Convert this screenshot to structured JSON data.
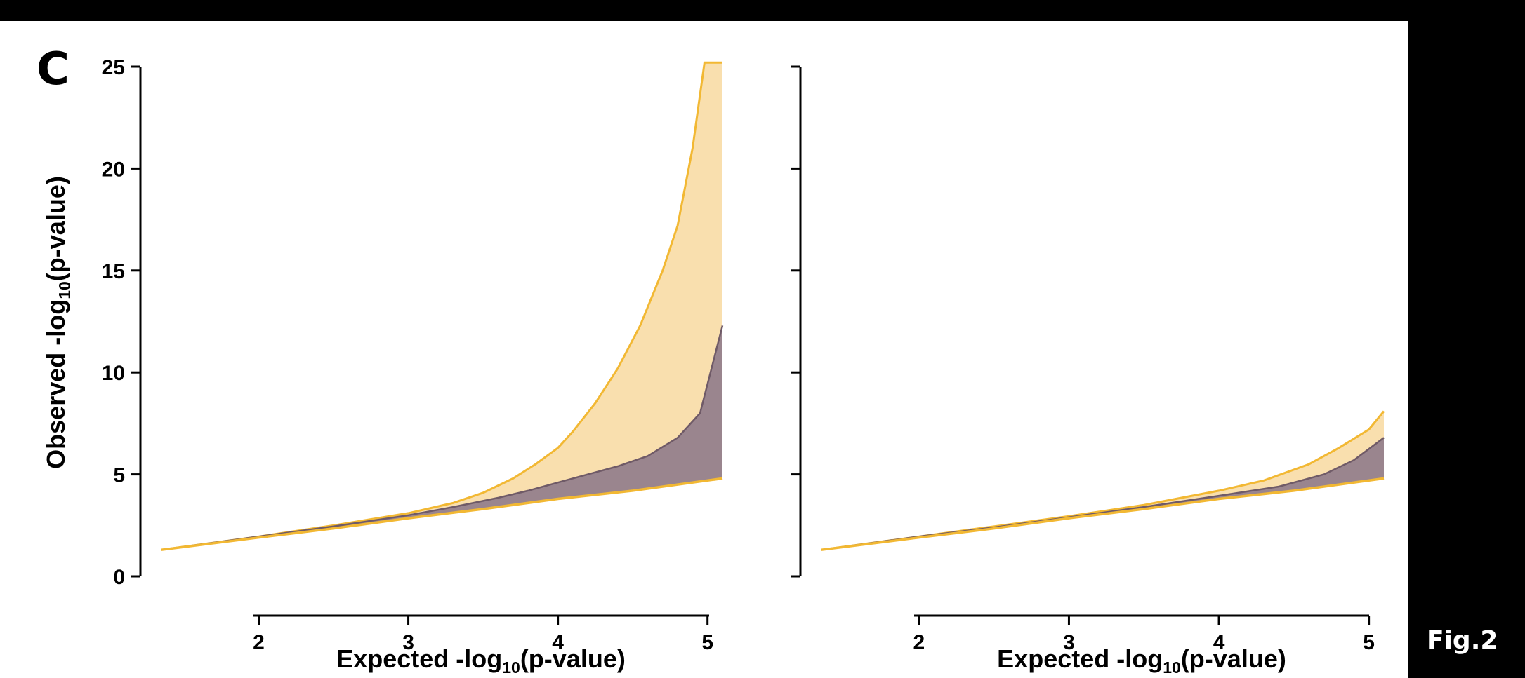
{
  "panel_letter": "C",
  "figure_label": "Fig.2",
  "colors": {
    "upper_fill": "#f9dfae",
    "upper_line": "#f2b833",
    "middle_fill": "#9a858e",
    "middle_line": "#6f5a67",
    "lower_line": "#f2b833"
  },
  "chart_data": [
    {
      "type": "area",
      "panel": "left",
      "xlabel": "Expected -log10(p-value)",
      "ylabel": "Observed -log10(p-value)",
      "xlim": [
        1.35,
        5.1
      ],
      "ylim": [
        0,
        25
      ],
      "xticks": [
        2,
        3,
        4,
        5
      ],
      "yticks": [
        0,
        5,
        10,
        15,
        20,
        25
      ],
      "series": [
        {
          "role": "upper",
          "points": [
            [
              1.35,
              1.3
            ],
            [
              2,
              1.95
            ],
            [
              2.5,
              2.5
            ],
            [
              3,
              3.1
            ],
            [
              3.3,
              3.6
            ],
            [
              3.5,
              4.1
            ],
            [
              3.7,
              4.8
            ],
            [
              3.85,
              5.5
            ],
            [
              4,
              6.3
            ],
            [
              4.1,
              7.1
            ],
            [
              4.25,
              8.5
            ],
            [
              4.4,
              10.2
            ],
            [
              4.55,
              12.3
            ],
            [
              4.7,
              15.0
            ],
            [
              4.8,
              17.2
            ],
            [
              4.9,
              21.0
            ],
            [
              4.98,
              25.2
            ],
            [
              5.1,
              25.2
            ]
          ]
        },
        {
          "role": "middle",
          "points": [
            [
              1.35,
              1.3
            ],
            [
              2,
              1.95
            ],
            [
              2.5,
              2.45
            ],
            [
              3,
              3.0
            ],
            [
              3.3,
              3.4
            ],
            [
              3.6,
              3.85
            ],
            [
              3.8,
              4.2
            ],
            [
              4,
              4.6
            ],
            [
              4.2,
              5.0
            ],
            [
              4.4,
              5.4
            ],
            [
              4.6,
              5.9
            ],
            [
              4.8,
              6.8
            ],
            [
              4.95,
              8.0
            ],
            [
              5.1,
              12.3
            ]
          ]
        },
        {
          "role": "lower",
          "points": [
            [
              1.35,
              1.3
            ],
            [
              2,
              1.9
            ],
            [
              2.5,
              2.35
            ],
            [
              3,
              2.85
            ],
            [
              3.5,
              3.3
            ],
            [
              4,
              3.8
            ],
            [
              4.5,
              4.2
            ],
            [
              5.1,
              4.8
            ]
          ]
        }
      ]
    },
    {
      "type": "area",
      "panel": "right",
      "xlabel": "Expected -log10(p-value)",
      "ylabel": "",
      "xlim": [
        1.35,
        5.1
      ],
      "ylim": [
        0,
        25
      ],
      "xticks": [
        2,
        3,
        4,
        5
      ],
      "yticks": [
        0,
        5,
        10,
        15,
        20,
        25
      ],
      "series": [
        {
          "role": "upper",
          "points": [
            [
              1.35,
              1.3
            ],
            [
              2,
              1.95
            ],
            [
              2.5,
              2.45
            ],
            [
              3,
              2.95
            ],
            [
              3.5,
              3.5
            ],
            [
              4,
              4.2
            ],
            [
              4.3,
              4.7
            ],
            [
              4.6,
              5.5
            ],
            [
              4.8,
              6.3
            ],
            [
              5,
              7.2
            ],
            [
              5.1,
              8.1
            ]
          ]
        },
        {
          "role": "middle",
          "points": [
            [
              1.35,
              1.3
            ],
            [
              2,
              1.95
            ],
            [
              2.5,
              2.4
            ],
            [
              3,
              2.9
            ],
            [
              3.5,
              3.4
            ],
            [
              4,
              3.95
            ],
            [
              4.4,
              4.4
            ],
            [
              4.7,
              5.0
            ],
            [
              4.9,
              5.7
            ],
            [
              5.1,
              6.8
            ]
          ]
        },
        {
          "role": "lower",
          "points": [
            [
              1.35,
              1.3
            ],
            [
              2,
              1.9
            ],
            [
              2.5,
              2.35
            ],
            [
              3,
              2.85
            ],
            [
              3.5,
              3.3
            ],
            [
              4,
              3.8
            ],
            [
              4.5,
              4.2
            ],
            [
              5.1,
              4.8
            ]
          ]
        }
      ]
    }
  ],
  "text": {
    "xlabel_main": "Expected -log",
    "xlabel_sub": "10",
    "xlabel_tail": "(p-value)",
    "ylabel_main": "Observed -log",
    "ylabel_sub": "10",
    "ylabel_tail": "(p-value)"
  }
}
